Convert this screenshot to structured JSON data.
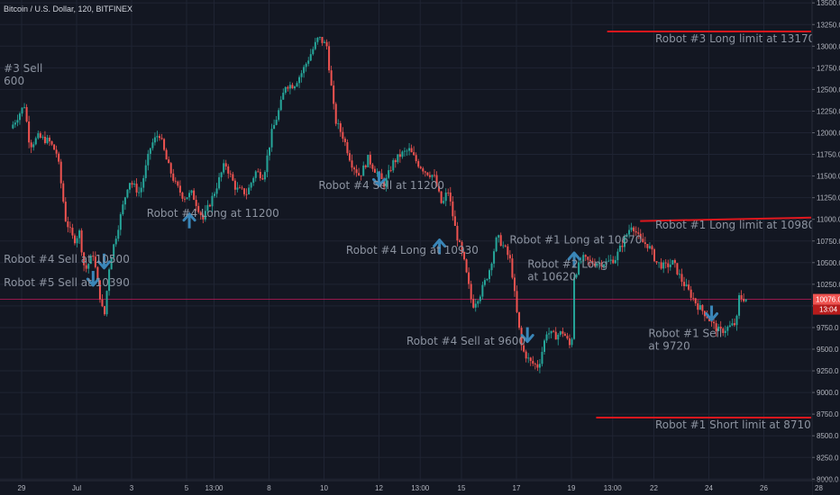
{
  "chart_data": {
    "type": "candlestick",
    "title": "Bitcoin / U.S. Dollar, 120, BITFINEX",
    "colors": {
      "background": "#131722",
      "up": "#26a69a",
      "down": "#ef5350",
      "limit_line": "#e0171d",
      "arrow": "#3a86b8",
      "price_line": "#c2185b"
    },
    "ylim": [
      8000,
      13500
    ],
    "y_ticks": [
      "8000.0",
      "8250.0",
      "8500.0",
      "8750.0",
      "9000.0",
      "9250.0",
      "9500.0",
      "9750.0",
      "10000.0",
      "10250.0",
      "10500.0",
      "10750.0",
      "11000.0",
      "11250.0",
      "11500.0",
      "11750.0",
      "12000.0",
      "12250.0",
      "12500.0",
      "12750.0",
      "13000.0",
      "13250.0",
      "13500.0"
    ],
    "x_ticks": [
      {
        "label": "29",
        "day": 0
      },
      {
        "label": "Jul",
        "day": 2
      },
      {
        "label": "3",
        "day": 4
      },
      {
        "label": "5",
        "day": 6
      },
      {
        "label": "13:00",
        "day": 7
      },
      {
        "label": "8",
        "day": 9
      },
      {
        "label": "10",
        "day": 11
      },
      {
        "label": "12",
        "day": 13
      },
      {
        "label": "13:00",
        "day": 14.5
      },
      {
        "label": "15",
        "day": 16
      },
      {
        "label": "17",
        "day": 18
      },
      {
        "label": "19",
        "day": 20
      },
      {
        "label": "13:00",
        "day": 21.5
      },
      {
        "label": "22",
        "day": 23
      },
      {
        "label": "24",
        "day": 25
      },
      {
        "label": "26",
        "day": 27
      },
      {
        "label": "28",
        "day": 29
      }
    ],
    "current_price": {
      "value": 10076,
      "label": "10076.0",
      "countdown": "13:04"
    },
    "close_path": [
      [
        -0.4,
        12050
      ],
      [
        0.1,
        12320
      ],
      [
        0.3,
        11850
      ],
      [
        0.6,
        11950
      ],
      [
        1.0,
        11900
      ],
      [
        1.3,
        11750
      ],
      [
        1.6,
        11000
      ],
      [
        1.9,
        10750
      ],
      [
        2.1,
        10850
      ],
      [
        2.3,
        10400
      ],
      [
        2.6,
        10600
      ],
      [
        2.8,
        10200
      ],
      [
        3.0,
        9850
      ],
      [
        3.2,
        10500
      ],
      [
        3.5,
        10900
      ],
      [
        3.9,
        11450
      ],
      [
        4.3,
        11300
      ],
      [
        4.7,
        11850
      ],
      [
        5.0,
        12000
      ],
      [
        5.3,
        11650
      ],
      [
        5.6,
        11400
      ],
      [
        5.9,
        11250
      ],
      [
        6.2,
        11300
      ],
      [
        6.6,
        11000
      ],
      [
        7.0,
        11300
      ],
      [
        7.4,
        11650
      ],
      [
        7.8,
        11350
      ],
      [
        8.2,
        11300
      ],
      [
        8.5,
        11550
      ],
      [
        8.8,
        11500
      ],
      [
        9.1,
        12000
      ],
      [
        9.4,
        12300
      ],
      [
        9.6,
        12550
      ],
      [
        9.9,
        12550
      ],
      [
        10.2,
        12700
      ],
      [
        10.5,
        12900
      ],
      [
        10.8,
        13100
      ],
      [
        11.1,
        13000
      ],
      [
        11.4,
        12150
      ],
      [
        11.7,
        11950
      ],
      [
        12.0,
        11650
      ],
      [
        12.3,
        11500
      ],
      [
        12.6,
        11700
      ],
      [
        12.9,
        11550
      ],
      [
        13.2,
        11400
      ],
      [
        13.5,
        11650
      ],
      [
        13.8,
        11750
      ],
      [
        14.1,
        11800
      ],
      [
        14.4,
        11650
      ],
      [
        14.7,
        11550
      ],
      [
        15.0,
        11500
      ],
      [
        15.3,
        11150
      ],
      [
        15.5,
        11350
      ],
      [
        15.8,
        10850
      ],
      [
        16.1,
        10500
      ],
      [
        16.4,
        10000
      ],
      [
        16.7,
        10150
      ],
      [
        17.0,
        10400
      ],
      [
        17.3,
        10800
      ],
      [
        17.6,
        10650
      ],
      [
        17.8,
        10500
      ],
      [
        18.0,
        9950
      ],
      [
        18.2,
        9500
      ],
      [
        18.5,
        9350
      ],
      [
        18.8,
        9300
      ],
      [
        19.1,
        9700
      ],
      [
        19.4,
        9650
      ],
      [
        19.7,
        9700
      ],
      [
        20.0,
        9500
      ],
      [
        20.1,
        10350
      ],
      [
        20.4,
        10550
      ],
      [
        20.7,
        10500
      ],
      [
        21.0,
        10500
      ],
      [
        21.3,
        10500
      ],
      [
        21.6,
        10550
      ],
      [
        21.9,
        10750
      ],
      [
        22.2,
        10950
      ],
      [
        22.5,
        10750
      ],
      [
        22.8,
        10700
      ],
      [
        23.1,
        10500
      ],
      [
        23.4,
        10450
      ],
      [
        23.7,
        10500
      ],
      [
        24.0,
        10300
      ],
      [
        24.3,
        10150
      ],
      [
        24.6,
        10000
      ],
      [
        24.9,
        9900
      ],
      [
        25.1,
        9800
      ],
      [
        25.4,
        9700
      ],
      [
        25.7,
        9750
      ],
      [
        26.0,
        9800
      ],
      [
        26.1,
        10100
      ],
      [
        26.4,
        10076
      ]
    ],
    "limit_lines": [
      {
        "label": "Robot #3 Long limit at 13170",
        "value": 13170,
        "from_day": 21.3,
        "to_day": 29.6
      },
      {
        "label": "Robot #1 Long limit at 10980",
        "value": 10980,
        "value_end": 11020,
        "from_day": 22.5,
        "to_day": 29.6
      },
      {
        "label": "Robot #1 Short limit at 8710",
        "value": 8710,
        "from_day": 20.9,
        "to_day": 29.6
      }
    ],
    "annotations": [
      {
        "lines": [
          "#3 Sell",
          "600"
        ],
        "day": -0.65,
        "price": 12700,
        "direction": "none"
      },
      {
        "lines": [
          "Robot #4 Sell at 10500"
        ],
        "day": -0.65,
        "price": 10500,
        "direction": "down"
      },
      {
        "lines": [
          "Robot #5 Sell at 10390"
        ],
        "day": -0.65,
        "price": 10230,
        "direction": "down"
      },
      {
        "lines": [
          "Robot #4 Long at 11200"
        ],
        "day": 4.55,
        "price": 11030,
        "direction": "up"
      },
      {
        "lines": [
          "Robot #4 Sell at 11200"
        ],
        "day": 10.8,
        "price": 11350,
        "direction": "down"
      },
      {
        "lines": [
          "Robot #4 Long at 10930"
        ],
        "day": 11.8,
        "price": 10600,
        "direction": "up"
      },
      {
        "lines": [
          "Robot #4 Sell at 9600"
        ],
        "day": 14.0,
        "price": 9550,
        "direction": "down"
      },
      {
        "lines": [
          "Robot #1 Long at 10670"
        ],
        "day": 17.75,
        "price": 10720,
        "direction": "none"
      },
      {
        "lines": [
          "Robot #2 Long",
          "at 10620"
        ],
        "day": 18.4,
        "price": 10440,
        "direction": "none"
      },
      {
        "lines": [
          "Robot #1 Sell",
          "at 9720"
        ],
        "day": 22.8,
        "price": 9640,
        "direction": "none"
      }
    ],
    "arrows": [
      {
        "day": 3.0,
        "price": 10500,
        "direction": "down"
      },
      {
        "day": 2.6,
        "price": 10300,
        "direction": "down"
      },
      {
        "day": 6.1,
        "price": 11000,
        "direction": "up"
      },
      {
        "day": 13.0,
        "price": 11450,
        "direction": "down"
      },
      {
        "day": 15.2,
        "price": 10700,
        "direction": "up"
      },
      {
        "day": 18.4,
        "price": 9650,
        "direction": "down"
      },
      {
        "day": 20.1,
        "price": 10550,
        "direction": "up"
      },
      {
        "day": 25.1,
        "price": 9900,
        "direction": "down"
      }
    ]
  }
}
